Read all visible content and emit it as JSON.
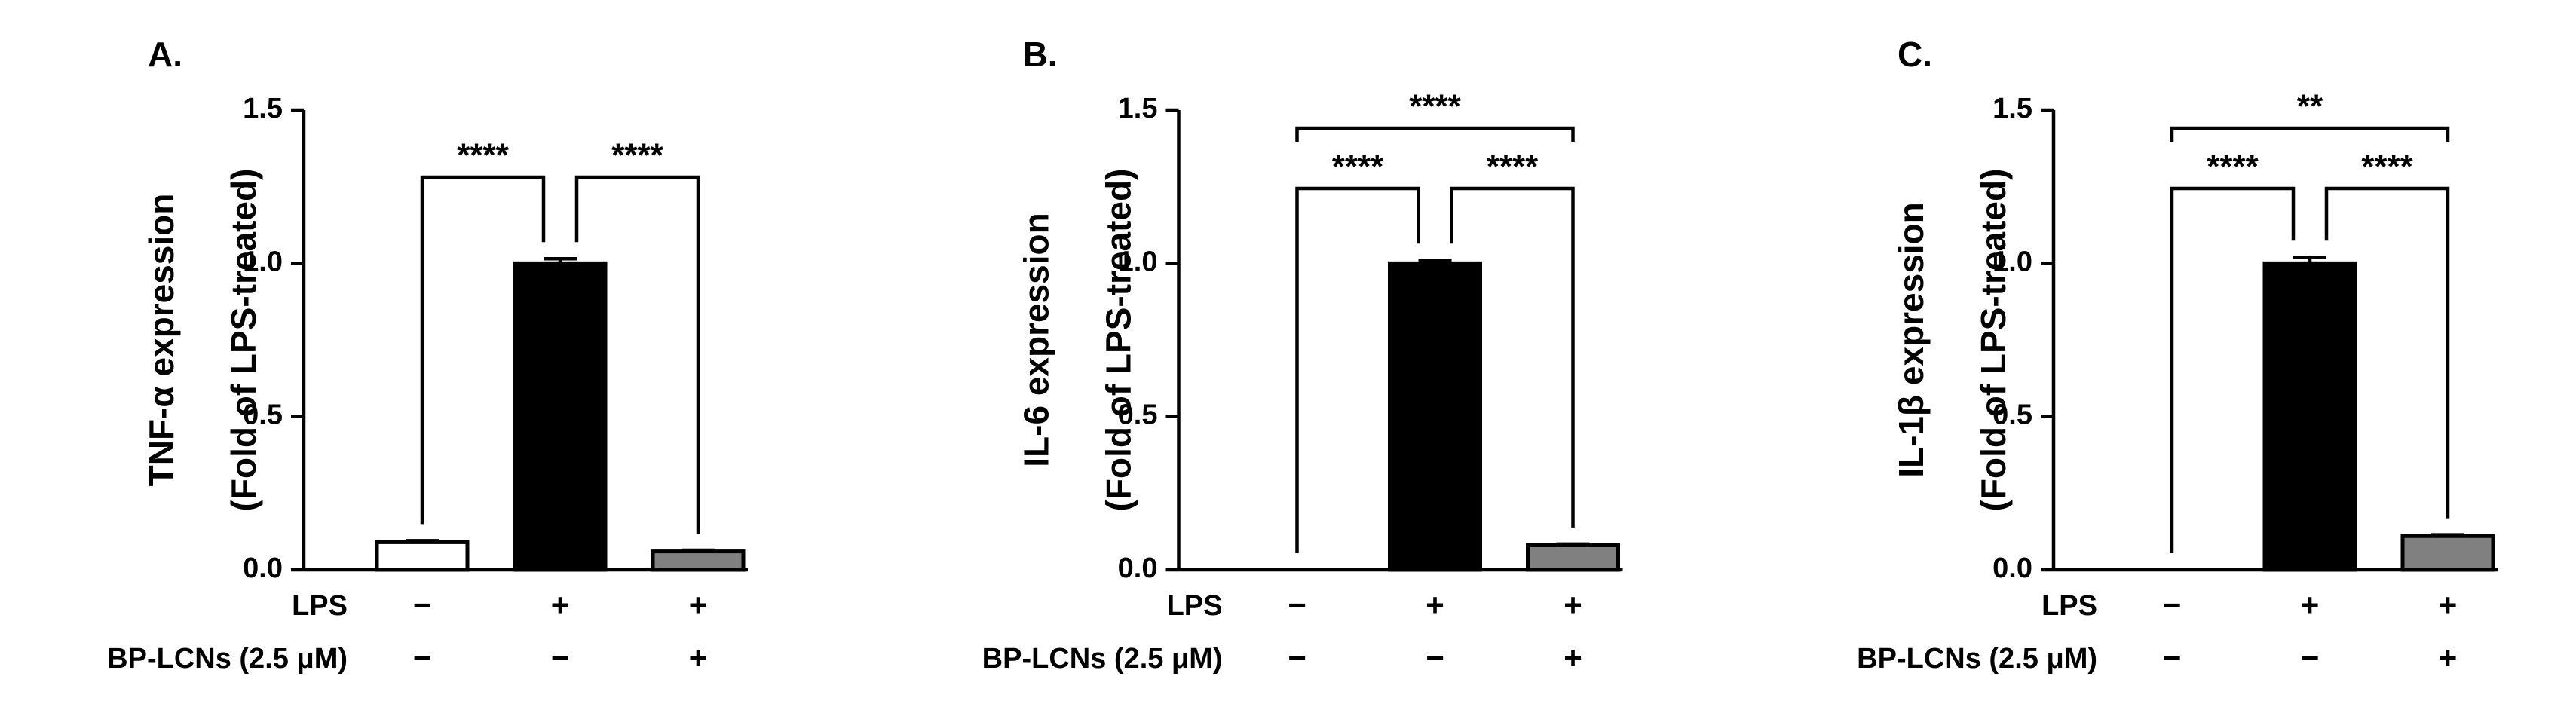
{
  "chart_data": [
    {
      "type": "bar",
      "panel": "A.",
      "ylabel": [
        "TNF-α expression",
        "(Fold of LPS-treated)"
      ],
      "values": [
        0.09,
        1.0,
        0.06
      ],
      "errors": [
        0.005,
        0.015,
        0.004
      ],
      "colors": [
        "#ffffff",
        "#000000",
        "#808080"
      ],
      "ylim": [
        0,
        1.5
      ],
      "yticks": [
        {
          "value": 0,
          "label": "0.0"
        },
        0.5,
        {
          "value": 1,
          "label": "1.0"
        },
        1.5
      ],
      "treatments": [
        {
          "label": "LPS",
          "signs": [
            "−",
            "+",
            "+"
          ]
        },
        {
          "label": "BP-LCNs (2.5 μM)",
          "signs": [
            "−",
            "−",
            "+"
          ]
        }
      ],
      "significance": [
        {
          "from": 0,
          "to": 1,
          "label": "****"
        },
        {
          "from": 1,
          "to": 2,
          "label": "****"
        }
      ]
    },
    {
      "type": "bar",
      "panel": "B.",
      "ylabel": [
        "IL-6 expression",
        "(Fold of LPS-treated)"
      ],
      "values": [
        0.0,
        1.0,
        0.08
      ],
      "errors": [
        0.0,
        0.01,
        0.004
      ],
      "colors": [
        "#ffffff",
        "#000000",
        "#808080"
      ],
      "ylim": [
        0,
        1.5
      ],
      "yticks": [
        {
          "value": 0,
          "label": "0.0"
        },
        0.5,
        {
          "value": 1,
          "label": "1.0"
        },
        1.5
      ],
      "treatments": [
        {
          "label": "LPS",
          "signs": [
            "−",
            "+",
            "+"
          ]
        },
        {
          "label": "BP-LCNs (2.5 μM)",
          "signs": [
            "−",
            "−",
            "+"
          ]
        }
      ],
      "significance": [
        {
          "from": 0,
          "to": 1,
          "label": "****"
        },
        {
          "from": 1,
          "to": 2,
          "label": "****"
        },
        {
          "from": 0,
          "to": 2,
          "label": "****"
        }
      ]
    },
    {
      "type": "bar",
      "panel": "C.",
      "ylabel": [
        "IL-1β expression",
        "(Fold of LPS-treated)"
      ],
      "values": [
        0.0,
        1.0,
        0.11
      ],
      "errors": [
        0.0,
        0.02,
        0.004
      ],
      "colors": [
        "#ffffff",
        "#000000",
        "#808080"
      ],
      "ylim": [
        0,
        1.5
      ],
      "yticks": [
        {
          "value": 0,
          "label": "0.0"
        },
        0.5,
        {
          "value": 1,
          "label": "1.0"
        },
        1.5
      ],
      "treatments": [
        {
          "label": "LPS",
          "signs": [
            "−",
            "+",
            "+"
          ]
        },
        {
          "label": "BP-LCNs (2.5 μM)",
          "signs": [
            "−",
            "−",
            "+"
          ]
        }
      ],
      "significance": [
        {
          "from": 0,
          "to": 1,
          "label": "****"
        },
        {
          "from": 1,
          "to": 2,
          "label": "****"
        },
        {
          "from": 0,
          "to": 2,
          "label": "**"
        }
      ]
    }
  ]
}
